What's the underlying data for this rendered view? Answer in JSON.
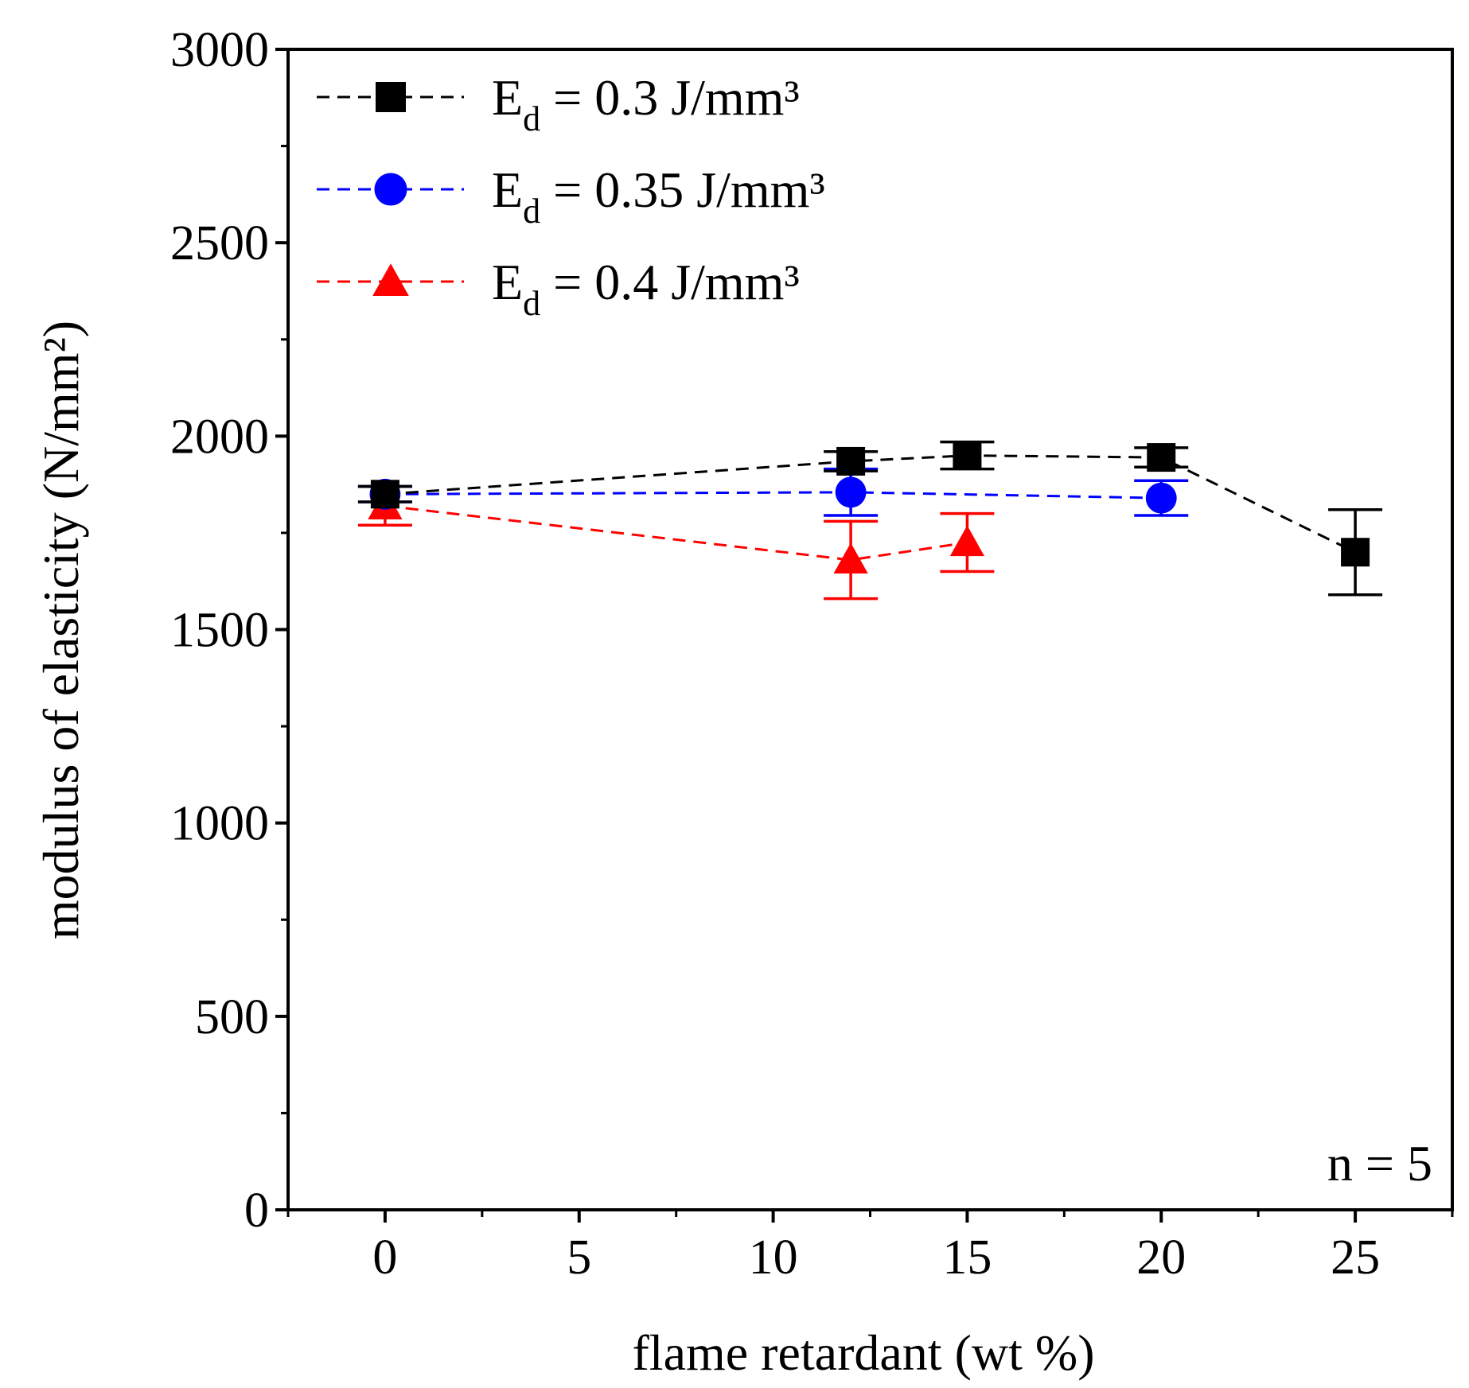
{
  "chart_data": {
    "type": "line",
    "xlabel": "flame retardant (wt %)",
    "ylabel": "modulus of elasticity (N/mm²)",
    "xlim": [
      -2.5,
      27.5
    ],
    "ylim": [
      0,
      3000
    ],
    "x_ticks": [
      0,
      5,
      10,
      15,
      20,
      25
    ],
    "x_tick_labels": [
      "0",
      "5",
      "10",
      "15",
      "20",
      "25"
    ],
    "y_ticks": [
      0,
      500,
      1000,
      1500,
      2000,
      2500,
      3000
    ],
    "y_tick_labels": [
      "0",
      "500",
      "1000",
      "1500",
      "2000",
      "2500",
      "3000"
    ],
    "grid": false,
    "legend_position": "top-left",
    "annotation": "n = 5",
    "series": [
      {
        "name": "E_d = 0.3 J/mm³",
        "legend_main": "E",
        "legend_sub": "d",
        "legend_rest": " = 0.3 J/mm³",
        "color": "#000000",
        "marker": "square",
        "x": [
          0,
          12,
          15,
          20,
          25
        ],
        "y": [
          1850,
          1935,
          1950,
          1945,
          1700
        ],
        "err": [
          20,
          25,
          35,
          25,
          110
        ]
      },
      {
        "name": "E_d = 0.35 J/mm³",
        "legend_main": "E",
        "legend_sub": "d",
        "legend_rest": " = 0.35 J/mm³",
        "color": "#0000ff",
        "marker": "circle",
        "x": [
          0,
          12,
          20
        ],
        "y": [
          1850,
          1855,
          1840
        ],
        "err": [
          20,
          60,
          45
        ]
      },
      {
        "name": "E_d = 0.4 J/mm³",
        "legend_main": "E",
        "legend_sub": "d",
        "legend_rest": " = 0.4 J/mm³",
        "color": "#ff0000",
        "marker": "triangle",
        "x": [
          0,
          12,
          15
        ],
        "y": [
          1820,
          1680,
          1725
        ],
        "err": [
          50,
          100,
          75
        ]
      }
    ]
  }
}
